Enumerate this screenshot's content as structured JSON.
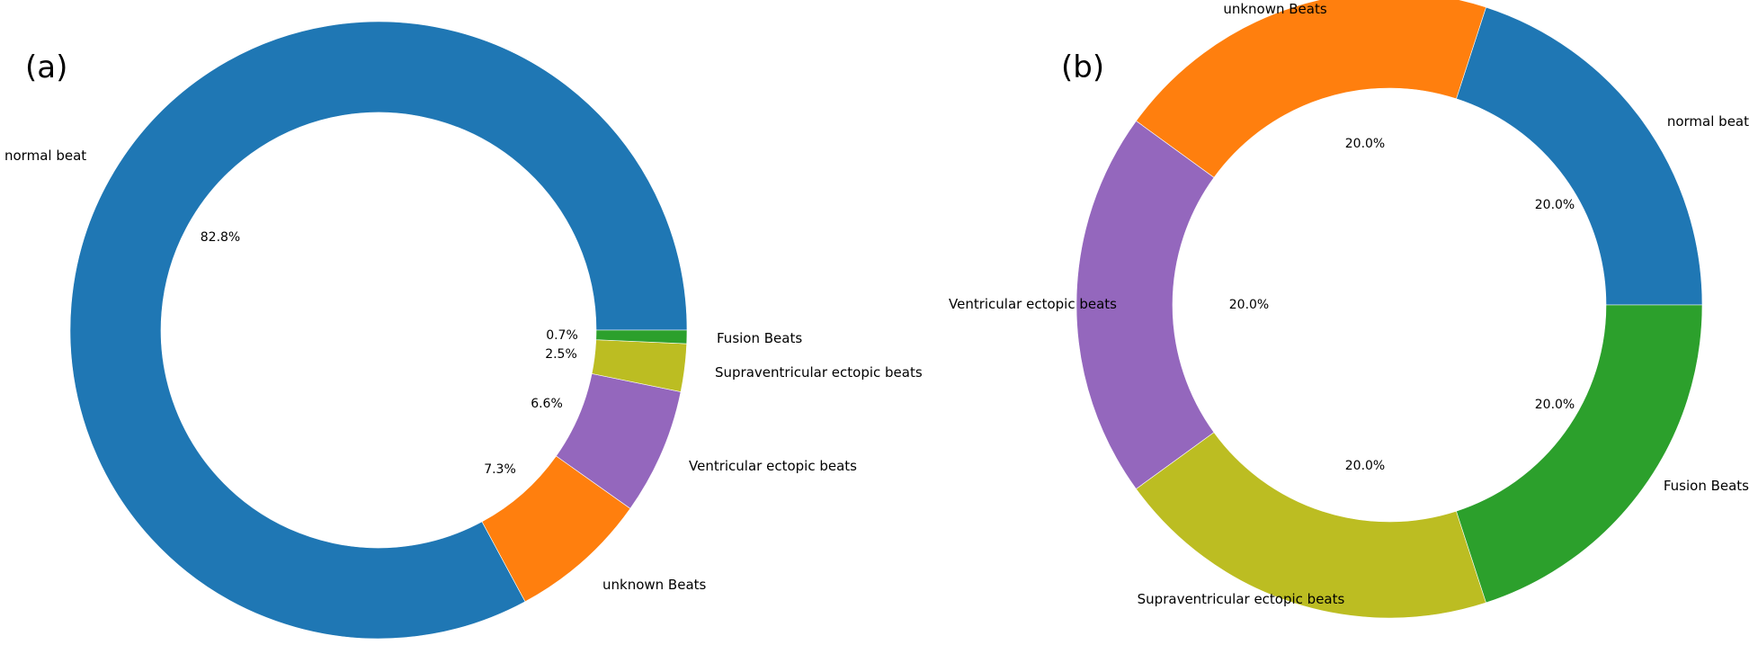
{
  "chart_data": [
    {
      "type": "donut",
      "panel_label": "(a)",
      "start_angle_deg": 0,
      "direction": "counterclockwise",
      "slices": [
        {
          "label": "normal beat",
          "value": 82.8,
          "pct_text": "82.8%",
          "color": "#1f77b4"
        },
        {
          "label": "unknown Beats",
          "value": 7.3,
          "pct_text": "7.3%",
          "color": "#ff7f0e"
        },
        {
          "label": "Ventricular ectopic beats",
          "value": 6.6,
          "pct_text": "6.6%",
          "color": "#9467bd"
        },
        {
          "label": "Supraventricular ectopic beats",
          "value": 2.5,
          "pct_text": "2.5%",
          "color": "#bcbd22"
        },
        {
          "label": "Fusion Beats",
          "value": 0.7,
          "pct_text": "0.7%",
          "color": "#2ca02c"
        }
      ]
    },
    {
      "type": "donut",
      "panel_label": "(b)",
      "start_angle_deg": 0,
      "direction": "counterclockwise",
      "slices": [
        {
          "label": "normal beat",
          "value": 20.0,
          "pct_text": "20.0%",
          "color": "#1f77b4"
        },
        {
          "label": "unknown Beats",
          "value": 20.0,
          "pct_text": "20.0%",
          "color": "#ff7f0e"
        },
        {
          "label": "Ventricular ectopic beats",
          "value": 20.0,
          "pct_text": "20.0%",
          "color": "#9467bd"
        },
        {
          "label": "Supraventricular ectopic beats",
          "value": 20.0,
          "pct_text": "20.0%",
          "color": "#bcbd22"
        },
        {
          "label": "Fusion Beats",
          "value": 20.0,
          "pct_text": "20.0%",
          "color": "#2ca02c"
        }
      ]
    }
  ]
}
